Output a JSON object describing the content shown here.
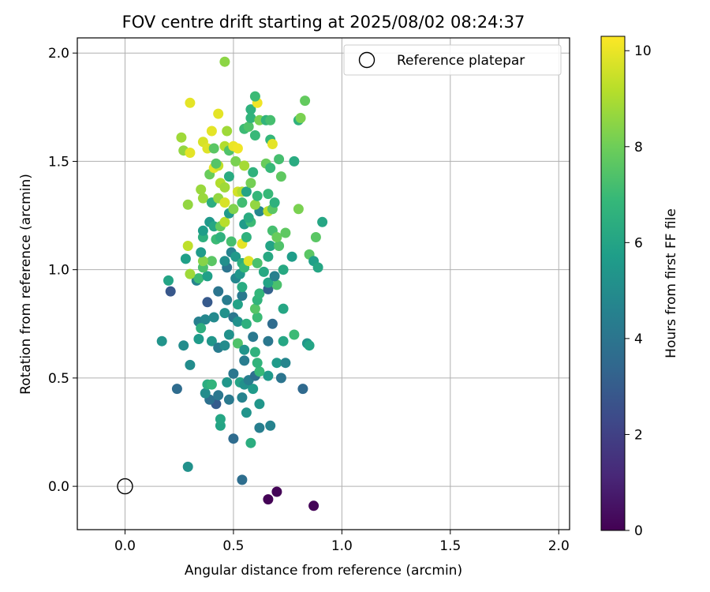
{
  "chart_data": {
    "type": "scatter",
    "title": "FOV centre drift starting at 2025/08/02 08:24:37",
    "xlabel": "Angular distance from reference (arcmin)",
    "ylabel": "Rotation from reference (arcmin)",
    "xlim": [
      -0.22,
      2.05
    ],
    "ylim": [
      -0.2,
      2.07
    ],
    "x_ticks": [
      0.0,
      0.5,
      1.0,
      1.5,
      2.0
    ],
    "x_tick_labels": [
      "0.0",
      "0.5",
      "1.0",
      "1.5",
      "2.0"
    ],
    "y_ticks": [
      0.0,
      0.5,
      1.0,
      1.5,
      2.0
    ],
    "y_tick_labels": [
      "0.0",
      "0.5",
      "1.0",
      "1.5",
      "2.0"
    ],
    "grid": true,
    "legend": {
      "placement": "top-right",
      "entries": [
        "Reference platepar"
      ]
    },
    "reference_point": {
      "x": 0.0,
      "y": 0.0,
      "label": "Reference platepar"
    },
    "colorbar": {
      "label": "Hours from first FF file",
      "range": [
        0,
        10.3
      ],
      "ticks": [
        0,
        2,
        4,
        6,
        8,
        10
      ],
      "tick_labels": [
        "0",
        "2",
        "4",
        "6",
        "8",
        "10"
      ],
      "colormap": "viridis",
      "colors": [
        "#440154",
        "#482878",
        "#3e4989",
        "#31688e",
        "#26828e",
        "#1f9e89",
        "#35b779",
        "#6ece58",
        "#b5de2b",
        "#fde725"
      ]
    },
    "points": [
      [
        0.66,
        -0.06,
        0.05
      ],
      [
        0.7,
        -0.025,
        0.1
      ],
      [
        0.87,
        -0.09,
        0.1
      ],
      [
        0.54,
        0.03,
        3.7
      ],
      [
        0.29,
        0.09,
        5.2
      ],
      [
        0.58,
        0.2,
        6.4
      ],
      [
        0.5,
        0.22,
        3.6
      ],
      [
        0.62,
        0.27,
        4.4
      ],
      [
        0.67,
        0.28,
        4.6
      ],
      [
        0.44,
        0.28,
        6.0
      ],
      [
        0.44,
        0.31,
        6.1
      ],
      [
        0.56,
        0.34,
        5.3
      ],
      [
        0.42,
        0.38,
        3.0
      ],
      [
        0.62,
        0.38,
        5.4
      ],
      [
        0.39,
        0.4,
        3.8
      ],
      [
        0.48,
        0.4,
        4.2
      ],
      [
        0.54,
        0.41,
        4.6
      ],
      [
        0.24,
        0.45,
        3.6
      ],
      [
        0.37,
        0.43,
        5.0
      ],
      [
        0.43,
        0.42,
        4.1
      ],
      [
        0.59,
        0.45,
        5.6
      ],
      [
        0.82,
        0.45,
        3.5
      ],
      [
        0.38,
        0.47,
        6.4
      ],
      [
        0.4,
        0.47,
        6.7
      ],
      [
        0.47,
        0.48,
        5.4
      ],
      [
        0.53,
        0.48,
        6.0
      ],
      [
        0.55,
        0.47,
        5.2
      ],
      [
        0.57,
        0.49,
        4.4
      ],
      [
        0.6,
        0.51,
        3.8
      ],
      [
        0.66,
        0.51,
        5.5
      ],
      [
        0.72,
        0.5,
        4.0
      ],
      [
        0.7,
        0.57,
        5.6
      ],
      [
        0.74,
        0.57,
        4.7
      ],
      [
        0.5,
        0.52,
        4.1
      ],
      [
        0.55,
        0.58,
        4.3
      ],
      [
        0.62,
        0.53,
        6.9
      ],
      [
        0.61,
        0.57,
        6.7
      ],
      [
        0.3,
        0.56,
        5.0
      ],
      [
        0.27,
        0.65,
        5.0
      ],
      [
        0.17,
        0.67,
        5.3
      ],
      [
        0.34,
        0.68,
        5.6
      ],
      [
        0.4,
        0.67,
        5.4
      ],
      [
        0.43,
        0.64,
        4.3
      ],
      [
        0.46,
        0.65,
        5.0
      ],
      [
        0.48,
        0.7,
        5.2
      ],
      [
        0.52,
        0.66,
        7.4
      ],
      [
        0.55,
        0.63,
        5.3
      ],
      [
        0.59,
        0.69,
        4.2
      ],
      [
        0.6,
        0.62,
        6.6
      ],
      [
        0.66,
        0.67,
        4.1
      ],
      [
        0.73,
        0.67,
        6.1
      ],
      [
        0.78,
        0.7,
        7.0
      ],
      [
        0.84,
        0.66,
        5.4
      ],
      [
        0.85,
        0.65,
        6.0
      ],
      [
        0.34,
        0.76,
        4.5
      ],
      [
        0.37,
        0.77,
        4.8
      ],
      [
        0.41,
        0.78,
        4.9
      ],
      [
        0.46,
        0.8,
        5.2
      ],
      [
        0.5,
        0.78,
        4.1
      ],
      [
        0.52,
        0.76,
        5.2
      ],
      [
        0.56,
        0.75,
        6.5
      ],
      [
        0.61,
        0.78,
        7.0
      ],
      [
        0.68,
        0.75,
        3.6
      ],
      [
        0.73,
        0.82,
        6.1
      ],
      [
        0.35,
        0.73,
        6.5
      ],
      [
        0.38,
        0.85,
        2.9
      ],
      [
        0.43,
        0.9,
        4.0
      ],
      [
        0.47,
        0.86,
        4.3
      ],
      [
        0.52,
        0.84,
        5.9
      ],
      [
        0.54,
        0.88,
        4.2
      ],
      [
        0.6,
        0.82,
        7.5
      ],
      [
        0.61,
        0.86,
        6.7
      ],
      [
        0.62,
        0.89,
        6.8
      ],
      [
        0.66,
        0.91,
        3.2
      ],
      [
        0.7,
        0.93,
        7.3
      ],
      [
        0.21,
        0.9,
        2.8
      ],
      [
        0.2,
        0.95,
        6.0
      ],
      [
        0.33,
        0.95,
        4.6
      ],
      [
        0.34,
        0.96,
        7.0
      ],
      [
        0.38,
        0.97,
        5.8
      ],
      [
        0.47,
        1.01,
        4.0
      ],
      [
        0.51,
        0.96,
        4.8
      ],
      [
        0.53,
        0.98,
        5.4
      ],
      [
        0.54,
        0.92,
        6.3
      ],
      [
        0.64,
        0.99,
        6.2
      ],
      [
        0.66,
        0.94,
        6.0
      ],
      [
        0.69,
        0.97,
        4.5
      ],
      [
        0.73,
        1.0,
        6.2
      ],
      [
        0.77,
        1.06,
        5.7
      ],
      [
        0.3,
        0.98,
        8.8
      ],
      [
        0.36,
        1.01,
        7.3
      ],
      [
        0.4,
        1.04,
        7.6
      ],
      [
        0.36,
        1.04,
        8.4
      ],
      [
        0.46,
        1.04,
        5.1
      ],
      [
        0.49,
        1.08,
        4.6
      ],
      [
        0.51,
        1.06,
        5.5
      ],
      [
        0.54,
        1.03,
        6.5
      ],
      [
        0.55,
        1.01,
        6.9
      ],
      [
        0.57,
        1.04,
        9.8
      ],
      [
        0.61,
        1.03,
        7.3
      ],
      [
        0.66,
        1.06,
        6.2
      ],
      [
        0.28,
        1.05,
        5.8
      ],
      [
        0.35,
        1.08,
        5.6
      ],
      [
        0.85,
        1.07,
        7.6
      ],
      [
        0.87,
        1.04,
        5.8
      ],
      [
        0.89,
        1.01,
        6.1
      ],
      [
        0.29,
        1.11,
        9.3
      ],
      [
        0.36,
        1.15,
        6.5
      ],
      [
        0.42,
        1.14,
        7.0
      ],
      [
        0.44,
        1.15,
        6.6
      ],
      [
        0.49,
        1.13,
        7.2
      ],
      [
        0.54,
        1.12,
        9.9
      ],
      [
        0.56,
        1.15,
        6.6
      ],
      [
        0.67,
        1.11,
        6.0
      ],
      [
        0.71,
        1.11,
        7.4
      ],
      [
        0.36,
        1.18,
        5.7
      ],
      [
        0.39,
        1.22,
        5.5
      ],
      [
        0.41,
        1.2,
        6.1
      ],
      [
        0.44,
        1.2,
        7.8
      ],
      [
        0.46,
        1.22,
        9.2
      ],
      [
        0.48,
        1.26,
        5.6
      ],
      [
        0.55,
        1.21,
        5.6
      ],
      [
        0.58,
        1.22,
        7.0
      ],
      [
        0.62,
        1.27,
        4.8
      ],
      [
        0.68,
        1.18,
        7.2
      ],
      [
        0.7,
        1.15,
        7.9
      ],
      [
        0.74,
        1.17,
        7.7
      ],
      [
        0.8,
        1.28,
        8.2
      ],
      [
        0.88,
        1.15,
        7.6
      ],
      [
        0.91,
        1.22,
        6.1
      ],
      [
        0.29,
        1.3,
        8.6
      ],
      [
        0.36,
        1.33,
        8.7
      ],
      [
        0.4,
        1.31,
        6.4
      ],
      [
        0.43,
        1.33,
        8.6
      ],
      [
        0.46,
        1.31,
        9.7
      ],
      [
        0.5,
        1.28,
        8.3
      ],
      [
        0.54,
        1.31,
        7.1
      ],
      [
        0.57,
        1.24,
        6.3
      ],
      [
        0.6,
        1.3,
        8.6
      ],
      [
        0.66,
        1.27,
        9.3
      ],
      [
        0.68,
        1.28,
        7.6
      ],
      [
        0.69,
        1.31,
        6.6
      ],
      [
        0.35,
        1.37,
        8.7
      ],
      [
        0.44,
        1.4,
        9.1
      ],
      [
        0.46,
        1.38,
        8.8
      ],
      [
        0.48,
        1.43,
        6.3
      ],
      [
        0.52,
        1.36,
        9.6
      ],
      [
        0.54,
        1.36,
        9.1
      ],
      [
        0.56,
        1.36,
        6.0
      ],
      [
        0.58,
        1.4,
        8.1
      ],
      [
        0.61,
        1.34,
        6.8
      ],
      [
        0.66,
        1.35,
        6.9
      ],
      [
        0.72,
        1.43,
        7.7
      ],
      [
        0.39,
        1.44,
        7.9
      ],
      [
        0.41,
        1.47,
        9.9
      ],
      [
        0.43,
        1.48,
        9.4
      ],
      [
        0.42,
        1.49,
        7.5
      ],
      [
        0.51,
        1.5,
        8.2
      ],
      [
        0.55,
        1.48,
        8.9
      ],
      [
        0.59,
        1.45,
        6.6
      ],
      [
        0.65,
        1.49,
        7.9
      ],
      [
        0.67,
        1.47,
        6.9
      ],
      [
        0.71,
        1.51,
        7.2
      ],
      [
        0.78,
        1.5,
        6.3
      ],
      [
        0.27,
        1.55,
        8.6
      ],
      [
        0.3,
        1.54,
        9.9
      ],
      [
        0.36,
        1.59,
        9.7
      ],
      [
        0.38,
        1.56,
        9.8
      ],
      [
        0.41,
        1.56,
        7.6
      ],
      [
        0.46,
        1.57,
        9.1
      ],
      [
        0.48,
        1.55,
        7.4
      ],
      [
        0.5,
        1.57,
        10.0
      ],
      [
        0.52,
        1.56,
        10.1
      ],
      [
        0.55,
        1.65,
        7.0
      ],
      [
        0.6,
        1.62,
        6.9
      ],
      [
        0.67,
        1.6,
        6.8
      ],
      [
        0.68,
        1.58,
        9.9
      ],
      [
        0.26,
        1.61,
        8.8
      ],
      [
        0.4,
        1.64,
        9.9
      ],
      [
        0.47,
        1.64,
        8.8
      ],
      [
        0.57,
        1.66,
        7.4
      ],
      [
        0.58,
        1.7,
        6.7
      ],
      [
        0.62,
        1.69,
        8.2
      ],
      [
        0.65,
        1.69,
        6.7
      ],
      [
        0.67,
        1.69,
        7.2
      ],
      [
        0.8,
        1.69,
        6.6
      ],
      [
        0.81,
        1.7,
        8.2
      ],
      [
        0.43,
        1.72,
        9.9
      ],
      [
        0.58,
        1.74,
        6.6
      ],
      [
        0.61,
        1.77,
        10.1
      ],
      [
        0.6,
        1.8,
        7.0
      ],
      [
        0.83,
        1.78,
        7.8
      ],
      [
        0.3,
        1.77,
        9.9
      ],
      [
        0.46,
        1.96,
        8.5
      ]
    ]
  }
}
